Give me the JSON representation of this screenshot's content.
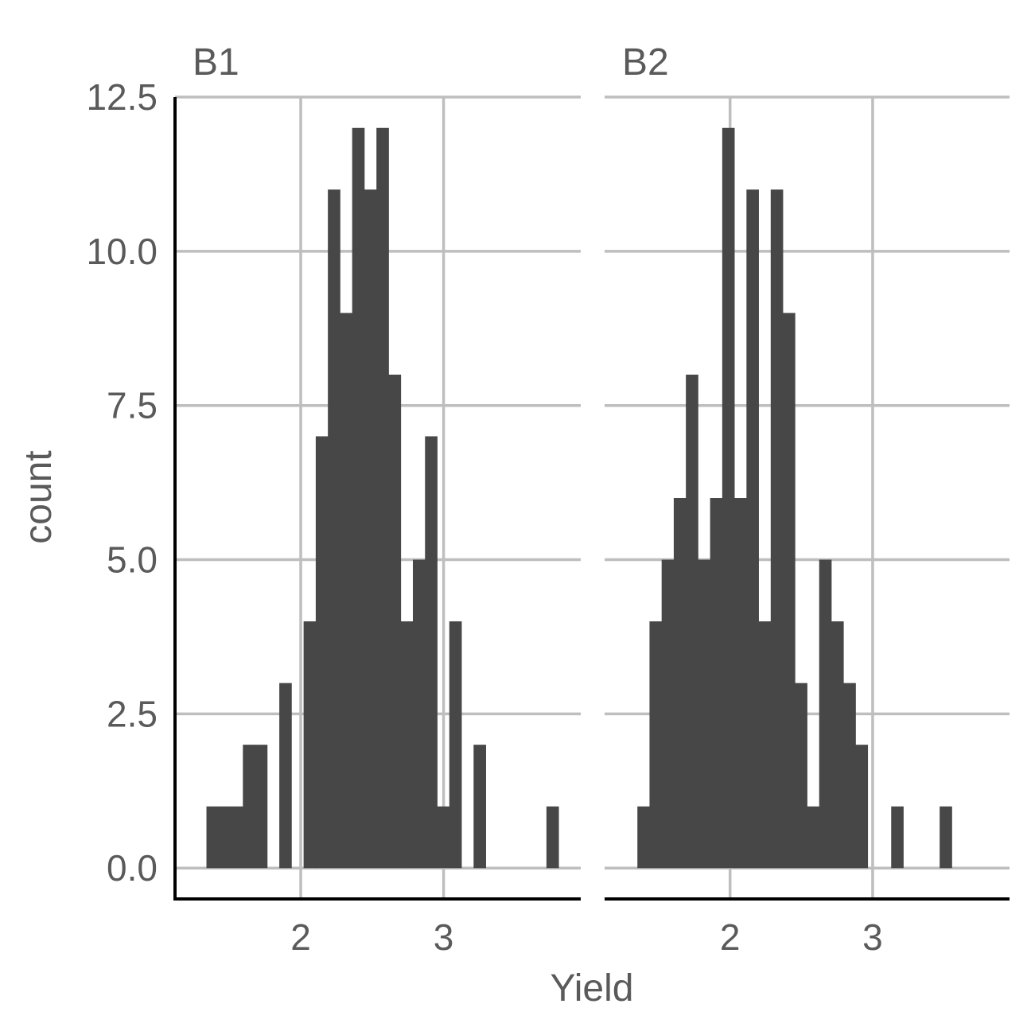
{
  "chart_data": {
    "type": "bar",
    "subtype": "faceted histogram",
    "xlabel": "Yield",
    "ylabel": "count",
    "ylim": [
      -0.5,
      12.5
    ],
    "y_ticks": [
      "0.0",
      "2.5",
      "5.0",
      "7.5",
      "10.0",
      "12.5"
    ],
    "x_ticks": [
      "2",
      "3"
    ],
    "grid": true,
    "bar_color": "#474747",
    "grid_color": "#bebebe",
    "panels": [
      {
        "label": "B1",
        "xlim": [
          1.12,
          3.96
        ],
        "bin_width": 0.085,
        "bins": [
          {
            "x0": 1.34,
            "count": 1
          },
          {
            "x0": 1.425,
            "count": 1
          },
          {
            "x0": 1.51,
            "count": 1
          },
          {
            "x0": 1.595,
            "count": 2
          },
          {
            "x0": 1.68,
            "count": 2
          },
          {
            "x0": 1.85,
            "count": 3
          },
          {
            "x0": 2.02,
            "count": 4
          },
          {
            "x0": 2.105,
            "count": 7
          },
          {
            "x0": 2.19,
            "count": 11
          },
          {
            "x0": 2.275,
            "count": 9
          },
          {
            "x0": 2.36,
            "count": 12
          },
          {
            "x0": 2.445,
            "count": 11
          },
          {
            "x0": 2.53,
            "count": 12
          },
          {
            "x0": 2.615,
            "count": 8
          },
          {
            "x0": 2.7,
            "count": 4
          },
          {
            "x0": 2.785,
            "count": 5
          },
          {
            "x0": 2.87,
            "count": 7
          },
          {
            "x0": 2.955,
            "count": 1
          },
          {
            "x0": 3.04,
            "count": 4
          },
          {
            "x0": 3.21,
            "count": 2
          },
          {
            "x0": 3.72,
            "count": 1
          }
        ]
      },
      {
        "label": "B2",
        "xlim": [
          1.12,
          3.96
        ],
        "bin_width": 0.085,
        "bins": [
          {
            "x0": 1.35,
            "count": 1
          },
          {
            "x0": 1.435,
            "count": 4
          },
          {
            "x0": 1.52,
            "count": 5
          },
          {
            "x0": 1.605,
            "count": 6
          },
          {
            "x0": 1.69,
            "count": 8
          },
          {
            "x0": 1.775,
            "count": 5
          },
          {
            "x0": 1.86,
            "count": 6
          },
          {
            "x0": 1.945,
            "count": 12
          },
          {
            "x0": 2.03,
            "count": 6
          },
          {
            "x0": 2.115,
            "count": 11
          },
          {
            "x0": 2.2,
            "count": 4
          },
          {
            "x0": 2.285,
            "count": 11
          },
          {
            "x0": 2.37,
            "count": 9
          },
          {
            "x0": 2.455,
            "count": 3
          },
          {
            "x0": 2.54,
            "count": 1
          },
          {
            "x0": 2.625,
            "count": 5
          },
          {
            "x0": 2.71,
            "count": 4
          },
          {
            "x0": 2.795,
            "count": 3
          },
          {
            "x0": 2.88,
            "count": 2
          },
          {
            "x0": 3.13,
            "count": 1
          },
          {
            "x0": 3.47,
            "count": 1
          }
        ]
      }
    ]
  }
}
